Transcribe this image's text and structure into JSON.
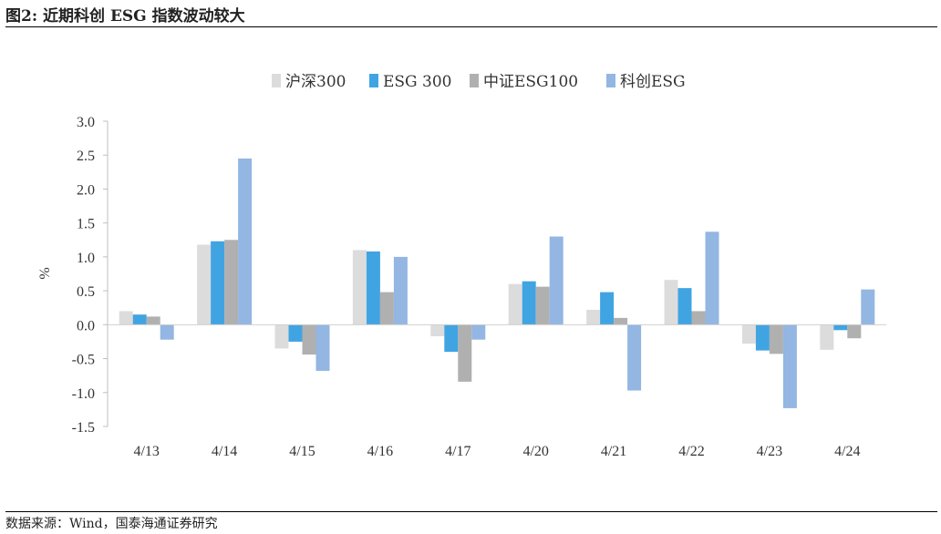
{
  "figure": {
    "title": "图2:  近期科创 ESG 指数波动较大",
    "source": "数据来源：Wind，国泰海通证券研究"
  },
  "chart_data": {
    "type": "bar",
    "ylabel": "%",
    "ylim": [
      -1.5,
      3.0
    ],
    "yticks": [
      3.0,
      2.5,
      2.0,
      1.5,
      1.0,
      0.5,
      0.0,
      -0.5,
      -1.0,
      -1.5
    ],
    "ytick_labels": [
      "3.0",
      "2.5",
      "2.0",
      "1.5",
      "1.0",
      "0.5",
      "0.0",
      "-0.5",
      "-1.0",
      "-1.5"
    ],
    "categories": [
      "4/13",
      "4/14",
      "4/15",
      "4/16",
      "4/17",
      "4/20",
      "4/21",
      "4/22",
      "4/23",
      "4/24"
    ],
    "legend_position": "top",
    "series": [
      {
        "name": "沪深300",
        "color": "#dcdcdc",
        "values": [
          0.2,
          1.18,
          -0.35,
          1.1,
          -0.17,
          0.6,
          0.22,
          0.66,
          -0.28,
          -0.37
        ]
      },
      {
        "name": "ESG 300",
        "color": "#41a4e2",
        "values": [
          0.15,
          1.23,
          -0.25,
          1.08,
          -0.4,
          0.64,
          0.48,
          0.54,
          -0.38,
          -0.08
        ]
      },
      {
        "name": "中证ESG100",
        "color": "#b0b0b0",
        "values": [
          0.12,
          1.25,
          -0.44,
          0.48,
          -0.84,
          0.56,
          0.1,
          0.2,
          -0.43,
          -0.2
        ]
      },
      {
        "name": "科创ESG",
        "color": "#93b6e2",
        "values": [
          -0.22,
          2.45,
          -0.68,
          1.0,
          -0.22,
          1.3,
          -0.97,
          1.37,
          -1.23,
          0.52
        ]
      }
    ]
  }
}
